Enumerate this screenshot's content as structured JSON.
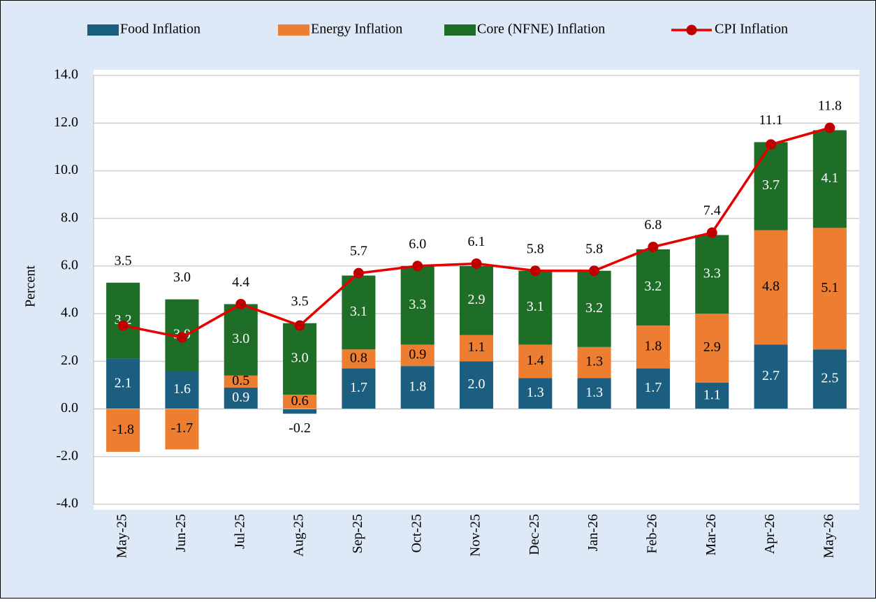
{
  "chart_data": {
    "type": "bar",
    "stacked": true,
    "categories": [
      "May-25",
      "Jun-25",
      "Jul-25",
      "Aug-25",
      "Sep-25",
      "Oct-25",
      "Nov-25",
      "Dec-25",
      "Jan-26",
      "Feb-26",
      "Mar-26",
      "Apr-26",
      "May-26"
    ],
    "series": [
      {
        "name": "Food Inflation",
        "type": "bar",
        "color": "#1b5e80",
        "label_color": "#ffffff",
        "values": [
          2.1,
          1.6,
          0.9,
          -0.2,
          1.7,
          1.8,
          2.0,
          1.3,
          1.3,
          1.7,
          1.1,
          2.7,
          2.5
        ],
        "value_labels": [
          "2.1",
          "1.6",
          "0.9",
          "-0.2",
          "1.7",
          "1.8",
          "2.0",
          "1.3",
          "1.3",
          "1.7",
          "1.1",
          "2.7",
          "2.5"
        ]
      },
      {
        "name": "Energy Inflation",
        "type": "bar",
        "color": "#ed7d31",
        "label_color": "#000000",
        "values": [
          -1.8,
          -1.7,
          0.5,
          0.6,
          0.8,
          0.9,
          1.1,
          1.4,
          1.3,
          1.8,
          2.9,
          4.8,
          5.1
        ],
        "value_labels": [
          "-1.8",
          "-1.7",
          "0.5",
          "0.6",
          "0.8",
          "0.9",
          "1.1",
          "1.4",
          "1.3",
          "1.8",
          "2.9",
          "4.8",
          "5.1"
        ]
      },
      {
        "name": "Core (NFNE) Inflation",
        "type": "bar",
        "color": "#1f6e28",
        "label_color": "#ffffff",
        "values": [
          3.2,
          3.0,
          3.0,
          3.0,
          3.1,
          3.3,
          2.9,
          3.1,
          3.2,
          3.2,
          3.3,
          3.7,
          4.1
        ],
        "value_labels": [
          "3.2",
          "3.0",
          "3.0",
          "3.0",
          "3.1",
          "3.3",
          "2.9",
          "3.1",
          "3.2",
          "3.2",
          "3.3",
          "3.7",
          "4.1"
        ]
      },
      {
        "name": "CPI Inflation",
        "type": "line",
        "color": "#e60000",
        "marker_color": "#c00000",
        "label_color": "#000000",
        "values": [
          3.5,
          3.0,
          4.4,
          3.5,
          5.7,
          6.0,
          6.1,
          5.8,
          5.8,
          6.8,
          7.4,
          11.1,
          11.8
        ],
        "value_labels": [
          "3.5",
          "3.0",
          "4.4",
          "3.5",
          "5.7",
          "6.0",
          "6.1",
          "5.8",
          "5.8",
          "6.8",
          "7.4",
          "11.1",
          "11.8"
        ]
      }
    ],
    "y_label": "Percent",
    "ylim": [
      -4,
      14
    ],
    "yticks": [
      {
        "value": -4,
        "label": "-4.0"
      },
      {
        "value": -2,
        "label": "-2.0"
      },
      {
        "value": 0,
        "label": "0.0"
      },
      {
        "value": 2,
        "label": "2.0"
      },
      {
        "value": 4,
        "label": "4.0"
      },
      {
        "value": 6,
        "label": "6.0"
      },
      {
        "value": 8,
        "label": "8.0"
      },
      {
        "value": 10,
        "label": "10.0"
      },
      {
        "value": 12,
        "label": "12.0"
      },
      {
        "value": 14,
        "label": "14.0"
      }
    ],
    "grid": true,
    "legend": "top"
  }
}
